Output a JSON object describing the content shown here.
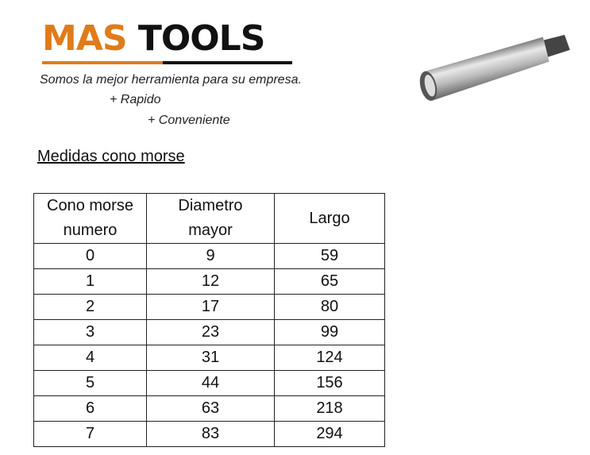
{
  "logo": {
    "part1": "MAS",
    "part2": "TOOLS",
    "accent": "#e07b1a"
  },
  "slogan": {
    "line1": "Somos la mejor herramienta para su empresa.",
    "line2": "+ Rapido",
    "line3": "+ Conveniente"
  },
  "section_title": "Medidas cono morse",
  "table": {
    "headers": [
      [
        "Cono morse",
        "numero"
      ],
      [
        "Diametro",
        "mayor"
      ],
      [
        "Largo"
      ]
    ],
    "rows": [
      [
        "0",
        "9",
        "59"
      ],
      [
        "1",
        "12",
        "65"
      ],
      [
        "2",
        "17",
        "80"
      ],
      [
        "3",
        "23",
        "99"
      ],
      [
        "4",
        "31",
        "124"
      ],
      [
        "5",
        "44",
        "156"
      ],
      [
        "6",
        "63",
        "218"
      ],
      [
        "7",
        "83",
        "294"
      ]
    ]
  },
  "image": {
    "icon": "morse-taper-sleeve-image"
  }
}
